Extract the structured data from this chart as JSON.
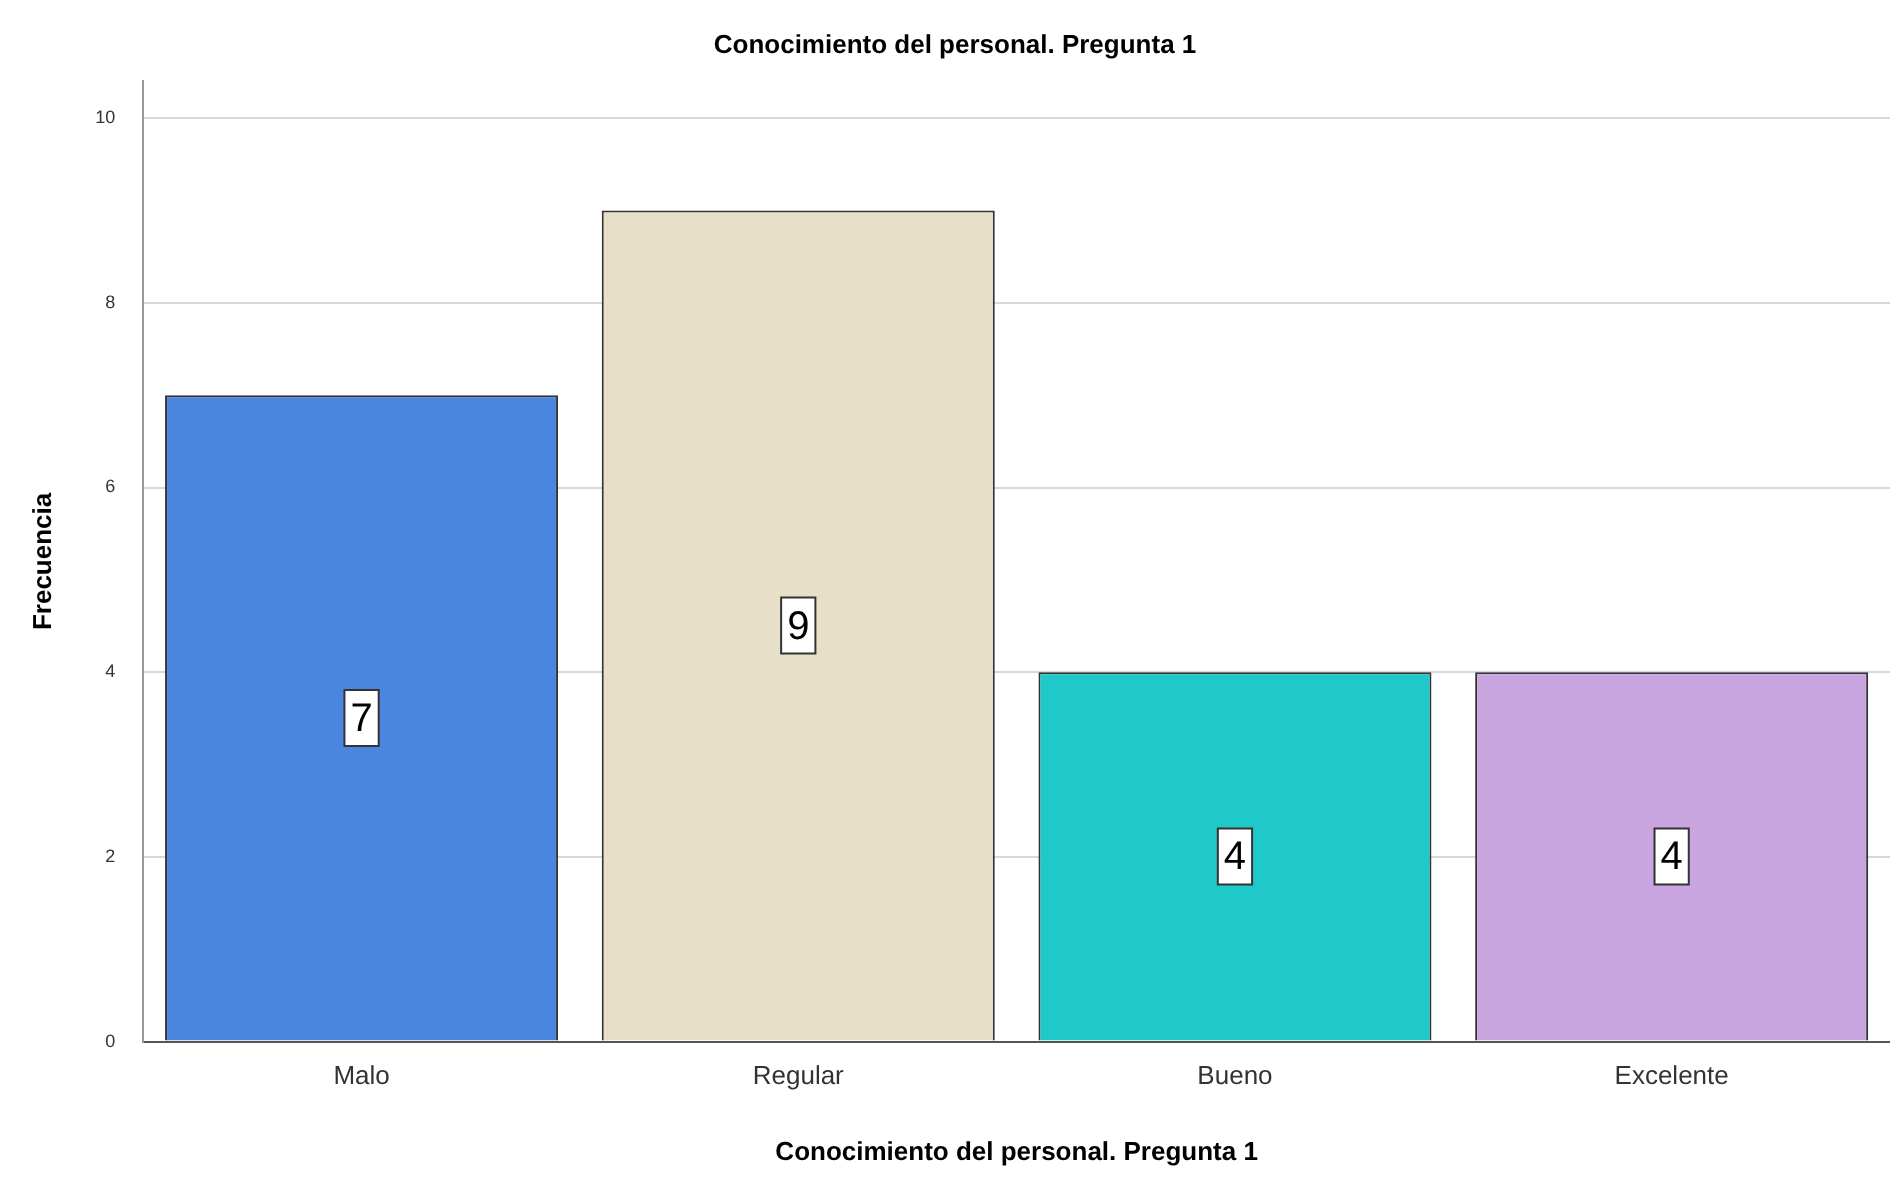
{
  "chart_data": {
    "type": "bar",
    "title": "Conocimiento del personal. Pregunta 1",
    "xlabel": "Conocimiento del personal. Pregunta 1",
    "ylabel": "Frecuencia",
    "categories": [
      "Malo",
      "Regular",
      "Bueno",
      "Excelente"
    ],
    "values": [
      7,
      9,
      4,
      4
    ],
    "colors": [
      "#4a86e0",
      "#e8dfc8",
      "#1fc9c9",
      "#c9a6e0"
    ],
    "ylim": [
      0,
      10.4
    ],
    "yticks": [
      0,
      2,
      4,
      6,
      8,
      10
    ],
    "grid": "y",
    "data_labels": true
  }
}
